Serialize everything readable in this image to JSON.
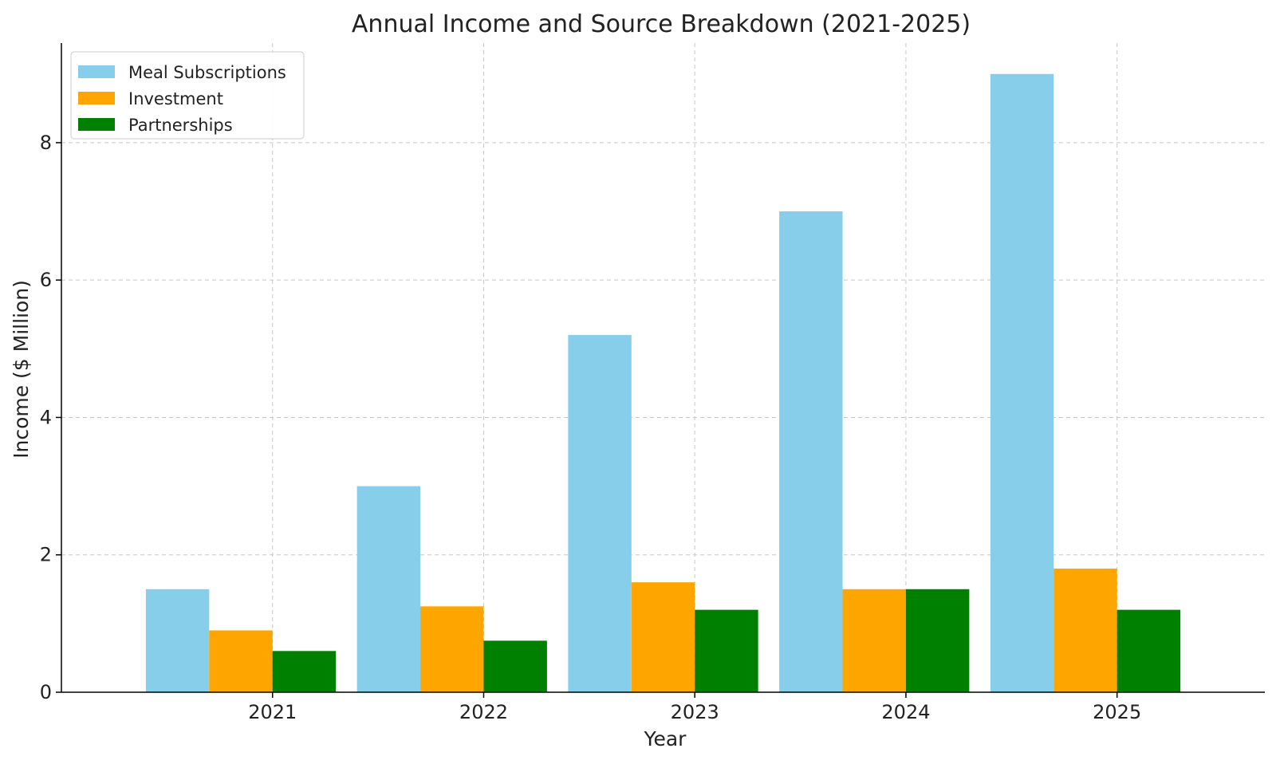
{
  "chart_data": {
    "type": "bar",
    "title": "Annual Income and Source Breakdown (2021-2025)",
    "xlabel": "Year",
    "ylabel": "Income ($ Million)",
    "categories": [
      "2021",
      "2022",
      "2023",
      "2024",
      "2025"
    ],
    "series": [
      {
        "name": "Meal Subscriptions",
        "color": "#87ceeb",
        "values": [
          1.5,
          3.0,
          5.2,
          7.0,
          9.0
        ]
      },
      {
        "name": "Investment",
        "color": "#ffa500",
        "values": [
          0.9,
          1.25,
          1.6,
          1.5,
          1.8
        ]
      },
      {
        "name": "Partnerships",
        "color": "#008000",
        "values": [
          0.6,
          0.75,
          1.2,
          1.5,
          1.2
        ]
      }
    ],
    "ylim": [
      0,
      9.45
    ],
    "yticks": [
      0,
      2,
      4,
      6,
      8
    ],
    "grid": true,
    "legend_position": "top-left"
  }
}
